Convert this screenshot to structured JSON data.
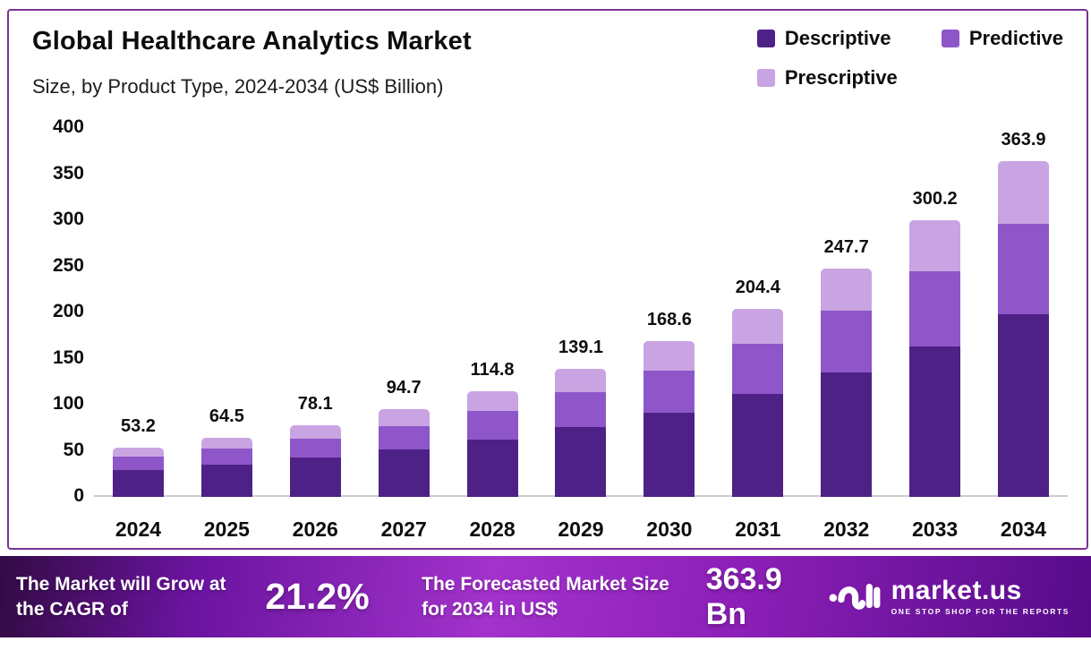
{
  "header": {
    "title": "Global Healthcare Analytics Market",
    "subtitle": "Size, by Product Type, 2024-2034 (US$ Billion)"
  },
  "colors": {
    "descriptive": "#4e2186",
    "predictive": "#8e56c9",
    "prescriptive": "#c9a4e2",
    "card_border": "#7a3397",
    "axis_line": "#cccccc",
    "banner_from": "#330b44",
    "banner_mid": "#a232cb",
    "banner_to": "#560b89"
  },
  "chart_data": {
    "type": "bar",
    "stacked": true,
    "title": "Global Healthcare Analytics Market Size, by Product Type, 2024-2034 (US$ Billion)",
    "categories": [
      "2024",
      "2025",
      "2026",
      "2027",
      "2028",
      "2029",
      "2030",
      "2031",
      "2032",
      "2033",
      "2034"
    ],
    "series": [
      {
        "name": "Descriptive",
        "color": "#4e2186",
        "values": [
          29.0,
          35.1,
          42.5,
          51.5,
          62.5,
          75.7,
          91.7,
          111.2,
          134.8,
          163.3,
          198.0
        ]
      },
      {
        "name": "Predictive",
        "color": "#8e56c9",
        "values": [
          14.4,
          17.4,
          21.1,
          25.6,
          31.0,
          37.6,
          45.5,
          55.2,
          66.9,
          81.1,
          98.3
        ]
      },
      {
        "name": "Prescriptive",
        "color": "#c9a4e2",
        "values": [
          9.8,
          12.0,
          14.5,
          17.6,
          21.3,
          25.8,
          31.4,
          38.0,
          46.0,
          55.8,
          67.6
        ]
      }
    ],
    "totals": [
      "53.2",
      "64.5",
      "78.1",
      "94.7",
      "114.8",
      "139.1",
      "168.6",
      "204.4",
      "247.7",
      "300.2",
      "363.9"
    ],
    "xlabel": "",
    "ylabel": "US$ Billion",
    "ylim": [
      0,
      400
    ],
    "yticks": [
      0,
      50,
      100,
      150,
      200,
      250,
      300,
      350,
      400
    ],
    "grid": false,
    "legend_position": "top-right"
  },
  "banner": {
    "cagr_label": "The Market will Grow at the CAGR of",
    "cagr_value": "21.2%",
    "forecast_label": "The Forecasted Market Size for 2034 in US$",
    "forecast_value": "363.9 Bn",
    "brand_name": "market.us",
    "brand_tagline": "ONE STOP SHOP FOR THE REPORTS"
  }
}
